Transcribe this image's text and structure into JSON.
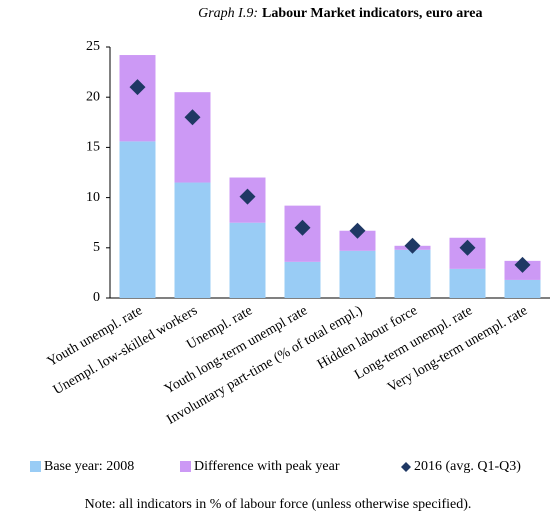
{
  "chart_data": {
    "type": "bar",
    "stacked": true,
    "graph_number": "Graph I.9:",
    "title": "Labour Market indicators, euro area",
    "categories": [
      "Youth unempl. rate",
      "Unempl. low-skilled workers",
      "Unempl. rate",
      "Youth long-term unempl rate",
      "Involuntary part-time (% of total empl.)",
      "Hidden labour force",
      "Long-term unempl. rate",
      "Very long-term unempl. rate"
    ],
    "series": [
      {
        "name": "Base year: 2008",
        "color": "#99ccf5",
        "type": "bar",
        "values": [
          15.6,
          11.5,
          7.5,
          3.6,
          4.7,
          4.8,
          2.9,
          1.8
        ]
      },
      {
        "name": "Difference with peak year",
        "color": "#cc99f5",
        "type": "bar",
        "values": [
          8.6,
          9.0,
          4.5,
          5.6,
          2.0,
          0.4,
          3.1,
          1.9
        ]
      },
      {
        "name": "2016 (avg. Q1-Q3)",
        "color": "#1f3864",
        "type": "scatter",
        "values": [
          21.0,
          18.0,
          10.1,
          7.0,
          6.7,
          5.2,
          5.0,
          3.3
        ]
      }
    ],
    "ylim": [
      0,
      25
    ],
    "yticks": [
      0,
      5,
      10,
      15,
      20,
      25
    ],
    "grid": false,
    "note": "Note: all indicators in % of labour force (unless otherwise specified)."
  }
}
